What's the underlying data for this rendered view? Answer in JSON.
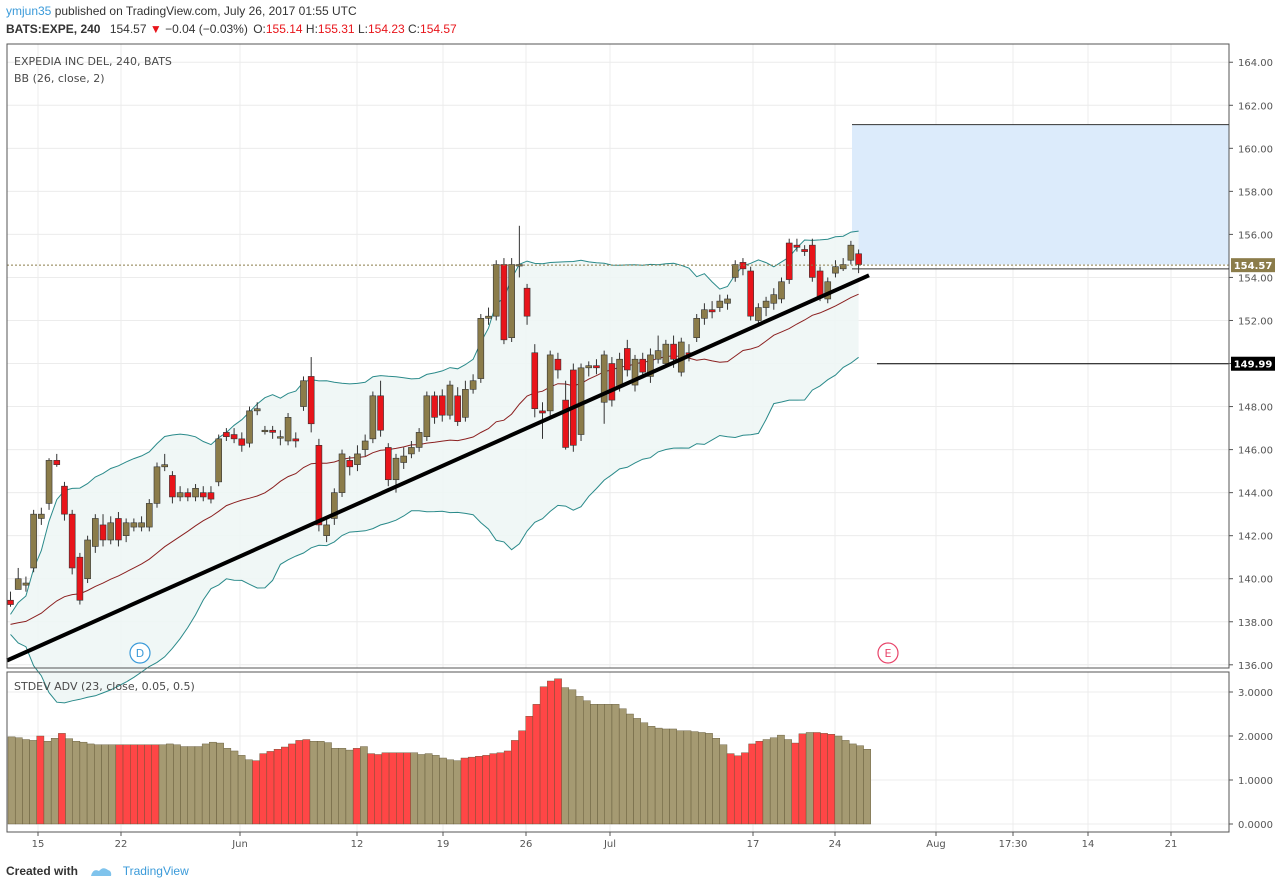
{
  "header": {
    "author": "ymjun35",
    "published_text": "published on TradingView.com, July 26, 2017 01:55 UTC",
    "symbol": "BATS:EXPE, 240",
    "last": "154.57",
    "change": "−0.04 (−0.03%)",
    "o_label": "O:",
    "o": "155.14",
    "h_label": "H:",
    "h": "155.31",
    "l_label": "L:",
    "l": "154.23",
    "c_label": "C:",
    "c": "154.57"
  },
  "pane_labels": {
    "main": "EXPEDIA INC DEL, 240, BATS",
    "bb": "BB (26, close, 2)",
    "lower": "STDEV ADV (23, close, 0.05, 0.5)"
  },
  "price_tags": {
    "last": "154.57",
    "level": "149.99"
  },
  "events": {
    "d": "D",
    "e": "E"
  },
  "footer": {
    "created_with": "Created with",
    "brand": "TradingView"
  },
  "colors": {
    "up": "#8b7c4a",
    "down": "#e8141a",
    "bb_fill": "#eef6f5",
    "bb_band": "#2a8a8a",
    "bb_basis": "#8b2020",
    "target_box": "#dcebfb",
    "adv_up": "#ff4646",
    "adv_down": "#a59a72",
    "accent": "#3a9ad9"
  },
  "chart_data": [
    {
      "type": "candlestick",
      "title": "EXPEDIA INC DEL, 240, BATS",
      "y_ticks": [
        "136.00",
        "138.00",
        "140.00",
        "142.00",
        "144.00",
        "146.00",
        "148.00",
        "150.00",
        "152.00",
        "154.00",
        "156.00",
        "158.00",
        "160.00",
        "162.00",
        "164.00"
      ],
      "x_ticks": [
        "15",
        "22",
        "Jun",
        "12",
        "19",
        "26",
        "Jul",
        "17",
        "24",
        "Aug",
        "17:30",
        "14",
        "21"
      ],
      "ylim": [
        136,
        164.5
      ],
      "indicator": "BB (26, close, 2)",
      "last_price": 154.57,
      "horizontal_level": 149.99,
      "target_zone": [
        154.6,
        161.1
      ],
      "trendline": [
        [
          136.2
        ],
        [
          154.1
        ]
      ],
      "candles": [
        [
          139,
          138.8,
          139.4,
          138.7
        ],
        [
          139.5,
          140,
          140.5,
          139.5
        ],
        [
          139.7,
          139.8,
          140.1,
          139.4
        ],
        [
          140.5,
          143,
          143.2,
          140.3
        ],
        [
          142.8,
          143,
          143.3,
          142.5
        ],
        [
          143.5,
          145.5,
          145.6,
          143.2
        ],
        [
          145.5,
          145.3,
          145.8,
          145.2
        ],
        [
          144.3,
          143,
          144.5,
          142.7
        ],
        [
          143,
          140.5,
          143.2,
          140.2
        ],
        [
          141,
          139,
          141.2,
          138.8
        ],
        [
          140,
          141.8,
          142,
          139.8
        ],
        [
          141.5,
          142.8,
          143,
          141.2
        ],
        [
          142.5,
          141.8,
          143,
          141.5
        ],
        [
          141.8,
          142.6,
          142.9,
          141.6
        ],
        [
          142.8,
          141.8,
          143.1,
          141.5
        ],
        [
          142,
          142.6,
          142.8,
          141.7
        ],
        [
          142.4,
          142.6,
          142.8,
          142.2
        ],
        [
          142.4,
          142.6,
          142.9,
          142.2
        ],
        [
          142.4,
          143.5,
          143.7,
          142.2
        ],
        [
          143.5,
          145.2,
          145.4,
          143.3
        ],
        [
          145.2,
          145.3,
          145.8,
          145
        ],
        [
          144.8,
          143.8,
          145,
          143.5
        ],
        [
          143.8,
          144,
          144.3,
          143.6
        ],
        [
          144,
          143.8,
          144.2,
          143.6
        ],
        [
          143.8,
          144.2,
          144.4,
          143.6
        ],
        [
          144,
          143.8,
          144.3,
          143.6
        ],
        [
          144,
          143.7,
          144.3,
          143.5
        ],
        [
          144.5,
          146.5,
          146.7,
          144.3
        ],
        [
          146.8,
          146.6,
          147,
          146.4
        ],
        [
          146.7,
          146.5,
          147,
          146.3
        ],
        [
          146.5,
          146.2,
          146.8,
          145.9
        ],
        [
          146.3,
          147.8,
          148,
          146.1
        ],
        [
          147.8,
          147.9,
          148.2,
          147.6
        ],
        [
          146.9,
          146.9,
          147.1,
          146.7
        ],
        [
          146.9,
          146.8,
          147.1,
          146.5
        ],
        [
          146.6,
          146.6,
          146.9,
          146.2
        ],
        [
          146.4,
          147.5,
          147.7,
          146.2
        ],
        [
          146.5,
          146.4,
          146.8,
          146.1
        ],
        [
          148,
          149.2,
          149.4,
          147.8
        ],
        [
          149.4,
          147.2,
          150.3,
          146.8
        ],
        [
          146.2,
          142.5,
          146.5,
          142.2
        ],
        [
          142,
          142.5,
          142.8,
          141.7
        ],
        [
          142.8,
          144,
          144.2,
          142.5
        ],
        [
          144,
          145.8,
          146,
          143.8
        ],
        [
          145.5,
          145.2,
          145.7,
          144.8
        ],
        [
          145.3,
          145.8,
          146.2,
          145
        ],
        [
          146,
          146.4,
          146.7,
          145.7
        ],
        [
          146.5,
          148.5,
          148.7,
          146.3
        ],
        [
          148.5,
          146.9,
          149.2,
          146.6
        ],
        [
          146.1,
          144.6,
          146.3,
          144.3
        ],
        [
          144.6,
          145.6,
          145.8,
          144
        ],
        [
          145.4,
          145.7,
          146.1,
          145.1
        ],
        [
          145.8,
          146.1,
          146.4,
          145.6
        ],
        [
          146.1,
          146.8,
          147,
          145.9
        ],
        [
          146.6,
          148.5,
          148.7,
          146.4
        ],
        [
          148.5,
          147.5,
          148.7,
          147.2
        ],
        [
          148.5,
          147.6,
          148.8,
          147.3
        ],
        [
          147.6,
          149,
          149.2,
          147.4
        ],
        [
          148.5,
          147.3,
          148.9,
          147.1
        ],
        [
          147.5,
          148.8,
          149.2,
          147.3
        ],
        [
          148.8,
          149.2,
          149.5,
          148.6
        ],
        [
          149.3,
          152.1,
          152.3,
          149.1
        ],
        [
          152.1,
          152.2,
          152.6,
          151.8
        ],
        [
          152.2,
          154.6,
          154.8,
          152
        ],
        [
          154.6,
          151.1,
          154.9,
          150.9
        ],
        [
          151.2,
          154.6,
          154.9,
          151
        ],
        [
          154.6,
          154.6,
          156.4,
          154
        ],
        [
          153.5,
          152.2,
          153.7,
          151.8
        ],
        [
          150.5,
          147.9,
          150.9,
          147.5
        ],
        [
          147.8,
          147.7,
          148.2,
          146.5
        ],
        [
          147.8,
          150.4,
          150.6,
          147.5
        ],
        [
          150.2,
          149.7,
          150.5,
          149.3
        ],
        [
          148.3,
          146.1,
          149.2,
          146
        ],
        [
          149.7,
          146.2,
          150,
          145.9
        ],
        [
          146.7,
          149.8,
          150,
          146.4
        ],
        [
          149.8,
          149.9,
          150.1,
          149.4
        ],
        [
          149.9,
          149.8,
          150.2,
          149.5
        ],
        [
          148.2,
          150.4,
          150.6,
          147.2
        ],
        [
          150,
          148.3,
          150.3,
          148
        ],
        [
          148.9,
          150.2,
          150.5,
          148.7
        ],
        [
          150.7,
          149.7,
          151.1,
          149.4
        ],
        [
          149,
          150.2,
          150.4,
          148.7
        ],
        [
          150.2,
          149.6,
          150.5,
          149.3
        ],
        [
          149.4,
          150.4,
          150.7,
          149.1
        ],
        [
          150.2,
          150.6,
          151.3,
          150
        ],
        [
          150,
          150.9,
          151.1,
          149.8
        ],
        [
          150.9,
          150.2,
          151.3,
          149.8
        ],
        [
          149.6,
          151,
          151.2,
          149.4
        ],
        [
          150.5,
          150.4,
          150.9,
          150.1
        ],
        [
          151.2,
          152.1,
          152.3,
          151
        ],
        [
          152.1,
          152.5,
          152.8,
          151.8
        ],
        [
          152.5,
          152.4,
          152.9,
          152.1
        ],
        [
          152.6,
          152.9,
          153.2,
          152.4
        ],
        [
          152.8,
          153,
          153.2,
          152.5
        ],
        [
          154,
          154.6,
          154.8,
          153.8
        ],
        [
          154.7,
          154.4,
          154.9,
          154.1
        ],
        [
          154.3,
          152.2,
          154.5,
          152
        ],
        [
          152,
          152.6,
          152.8,
          151.8
        ],
        [
          152.6,
          152.9,
          153.1,
          152.2
        ],
        [
          152.8,
          153.2,
          153.5,
          152.5
        ],
        [
          153,
          153.8,
          154,
          152.8
        ],
        [
          155.6,
          153.9,
          155.8,
          153.7
        ],
        [
          155.5,
          155.4,
          155.8,
          155.2
        ],
        [
          155.3,
          155.2,
          155.5,
          155
        ],
        [
          155.5,
          154,
          155.8,
          153.8
        ],
        [
          154.3,
          153.1,
          154.5,
          152.9
        ],
        [
          153,
          153.8,
          154,
          152.8
        ],
        [
          154.2,
          154.5,
          154.8,
          154
        ],
        [
          154.4,
          154.6,
          154.9,
          154.3
        ],
        [
          154.8,
          155.5,
          155.7,
          154.6
        ],
        [
          155.1,
          154.6,
          155.3,
          154.2
        ]
      ]
    },
    {
      "type": "bar",
      "title": "STDEV ADV (23, close, 0.05, 0.5)",
      "y_ticks": [
        "0.0000",
        "1.0000",
        "2.0000",
        "3.0000"
      ],
      "ylim": [
        -0.15,
        3.4
      ],
      "values": [
        1.98,
        1.96,
        1.92,
        1.9,
        2.0,
        1.88,
        1.95,
        2.06,
        1.94,
        1.88,
        1.86,
        1.82,
        1.8,
        1.8,
        1.8,
        1.8,
        1.8,
        1.8,
        1.8,
        1.8,
        1.8,
        1.8,
        1.82,
        1.8,
        1.76,
        1.76,
        1.76,
        1.82,
        1.86,
        1.84,
        1.72,
        1.66,
        1.56,
        1.46,
        1.44,
        1.6,
        1.65,
        1.7,
        1.75,
        1.82,
        1.9,
        1.92,
        1.88,
        1.88,
        1.85,
        1.72,
        1.72,
        1.68,
        1.72,
        1.76,
        1.6,
        1.58,
        1.62,
        1.62,
        1.62,
        1.62,
        1.62,
        1.58,
        1.6,
        1.56,
        1.5,
        1.46,
        1.44,
        1.5,
        1.52,
        1.54,
        1.56,
        1.6,
        1.62,
        1.66,
        1.9,
        2.12,
        2.45,
        2.72,
        3.12,
        3.25,
        3.3,
        3.1,
        3.05,
        2.9,
        2.8,
        2.72,
        2.72,
        2.72,
        2.72,
        2.62,
        2.5,
        2.4,
        2.3,
        2.22,
        2.18,
        2.16,
        2.16,
        2.12,
        2.12,
        2.1,
        2.08,
        2.06,
        1.95,
        1.8,
        1.6,
        1.55,
        1.62,
        1.82,
        1.88,
        1.92,
        1.96,
        2.02,
        1.92,
        1.84,
        2.05,
        2.08,
        2.08,
        2.06,
        2.04,
        2.0,
        1.9,
        1.82,
        1.78,
        1.7
      ],
      "up": [
        0,
        0,
        0,
        0,
        1,
        0,
        0,
        1,
        0,
        0,
        0,
        0,
        0,
        0,
        0,
        1,
        1,
        1,
        1,
        1,
        1,
        0,
        0,
        0,
        0,
        0,
        0,
        0,
        0,
        0,
        0,
        0,
        0,
        0,
        1,
        1,
        1,
        1,
        1,
        1,
        1,
        1,
        0,
        0,
        0,
        0,
        0,
        0,
        1,
        0,
        1,
        1,
        1,
        1,
        1,
        1,
        0,
        0,
        0,
        0,
        0,
        0,
        0,
        1,
        1,
        1,
        1,
        1,
        1,
        1,
        1,
        1,
        1,
        1,
        1,
        1,
        1,
        0,
        0,
        0,
        0,
        0,
        0,
        0,
        0,
        0,
        0,
        0,
        0,
        0,
        0,
        0,
        0,
        0,
        0,
        0,
        0,
        0,
        0,
        0,
        1,
        1,
        1,
        1,
        1,
        0,
        0,
        0,
        0,
        1,
        1,
        0,
        1,
        1,
        1,
        0,
        0,
        0,
        0,
        0
      ]
    }
  ]
}
